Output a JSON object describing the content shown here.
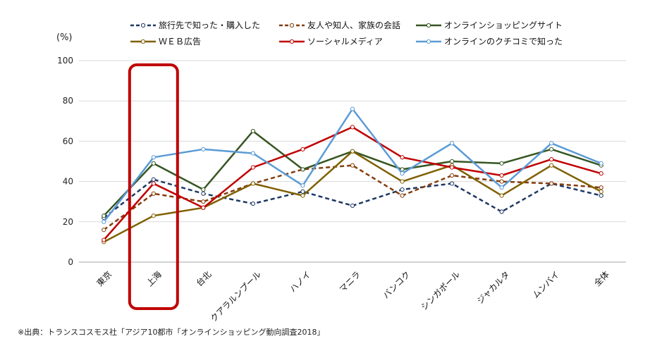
{
  "chart_data": {
    "type": "line",
    "ylabel": "(%)",
    "ylim": [
      0,
      100
    ],
    "yticks": [
      0,
      20,
      40,
      60,
      80,
      100
    ],
    "grid": "horizontal",
    "legend_position": "top",
    "categories": [
      "東京",
      "上海",
      "台北",
      "クアラルンプール",
      "ハノイ",
      "マニラ",
      "バンコク",
      "シンガポール",
      "ジャカルタ",
      "ムンバイ",
      "全体"
    ],
    "highlight_category": "上海",
    "highlight_color": "#c00000",
    "series": [
      {
        "name": "旅行先で知った・購入した",
        "color": "#1f3864",
        "dash": true,
        "values": [
          22,
          41,
          34,
          29,
          35,
          28,
          36,
          39,
          25,
          39,
          33
        ]
      },
      {
        "name": "友人や知人、家族の会話",
        "color": "#843c0c",
        "dash": true,
        "values": [
          16,
          34,
          30,
          39,
          46,
          48,
          33,
          43,
          40,
          39,
          37
        ]
      },
      {
        "name": "オンラインショッピングサイト",
        "color": "#375623",
        "dash": false,
        "values": [
          23,
          49,
          36,
          65,
          46,
          55,
          46,
          50,
          49,
          56,
          48
        ]
      },
      {
        "name": "ＷＥＢ広告",
        "color": "#7f6000",
        "dash": false,
        "values": [
          10,
          23,
          27,
          39,
          33,
          55,
          40,
          48,
          33,
          48,
          35
        ]
      },
      {
        "name": "ソーシャルメディア",
        "color": "#c00000",
        "dash": false,
        "values": [
          11,
          39,
          27,
          47,
          56,
          67,
          52,
          47,
          43,
          51,
          44
        ]
      },
      {
        "name": "オンラインのクチコミで知った",
        "color": "#5b9bd5",
        "dash": false,
        "values": [
          20,
          52,
          56,
          54,
          38,
          76,
          44,
          59,
          37,
          59,
          49
        ]
      }
    ]
  },
  "source_note": "※出典：トランスコスモス社「アジア10都市「オンラインショッピング動向調査2018」"
}
